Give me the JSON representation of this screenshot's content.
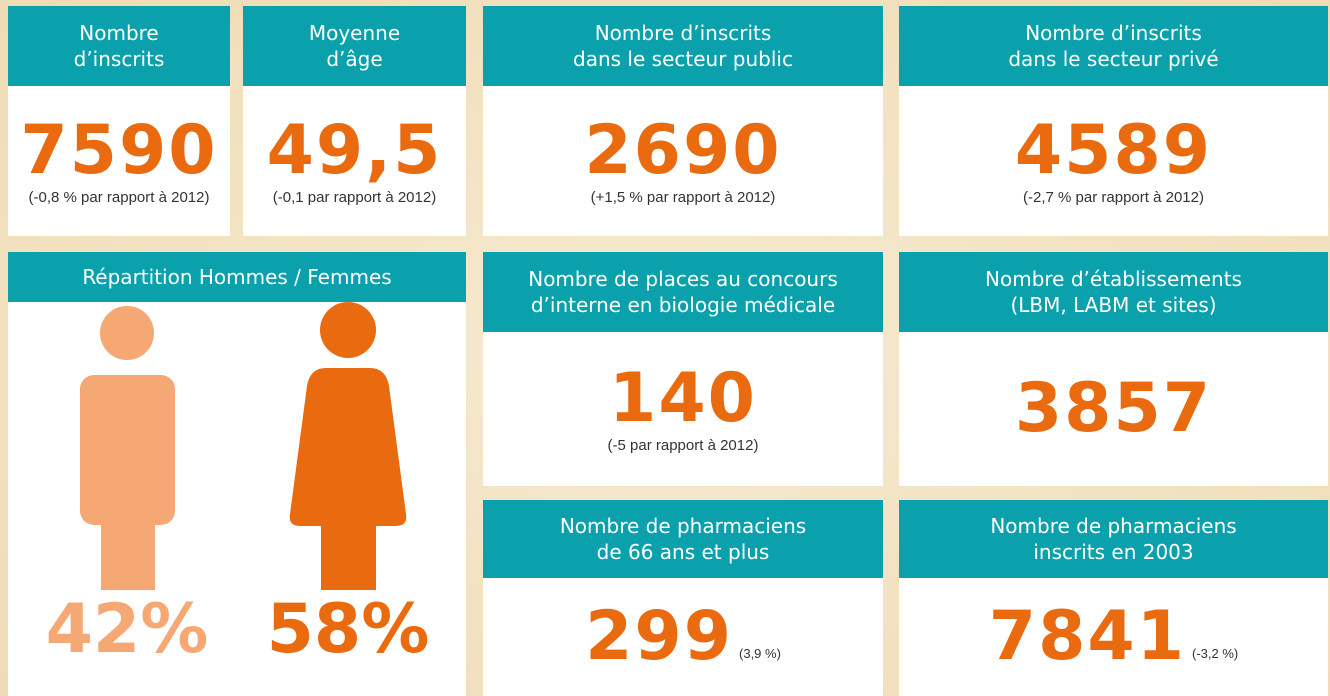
{
  "cards": [
    {
      "header": [
        "Nombre",
        "d’inscrits"
      ],
      "value": "7590",
      "note": "(-0,8 % par rapport à 2012)"
    },
    {
      "header": [
        "Moyenne",
        "d’âge"
      ],
      "value": "49,5",
      "note": "(-0,1 par rapport à 2012)"
    },
    {
      "header": [
        "Nombre d’inscrits",
        "dans le secteur public"
      ],
      "value": "2690",
      "note": "(+1,5 % par rapport à 2012)"
    },
    {
      "header": [
        "Nombre d’inscrits",
        "dans le secteur privé"
      ],
      "value": "4589",
      "note": "(-2,7 % par rapport à 2012)"
    },
    {
      "header": [
        "Nombre de places au concours",
        "d’interne en biologie médicale"
      ],
      "value": "140",
      "note": "(-5 par rapport à 2012)"
    },
    {
      "header": [
        "Nombre d’établissements",
        "(LBM, LABM et sites)"
      ],
      "value": "3857"
    },
    {
      "header": [
        "Nombre de pharmaciens",
        "de 66 ans et plus"
      ],
      "value": "299",
      "note": "(3,9 %)"
    },
    {
      "header": [
        "Nombre de pharmaciens",
        "inscrits en 2003"
      ],
      "value": "7841",
      "note": "(-3,2 %)"
    }
  ],
  "gender": {
    "header": "Répartition Hommes / Femmes",
    "men": "42%",
    "women": "58%"
  }
}
